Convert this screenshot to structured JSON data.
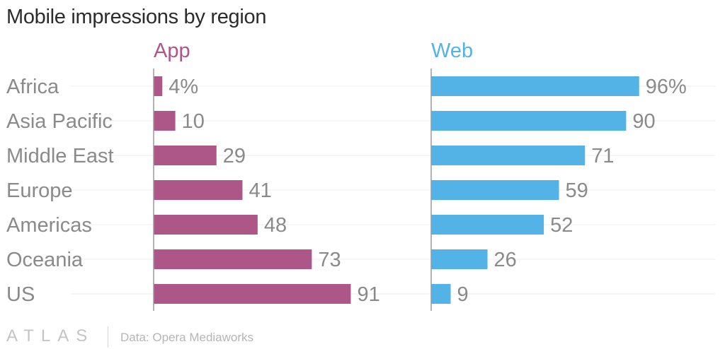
{
  "chart_data": {
    "type": "bar",
    "title": "Mobile impressions by region",
    "categories": [
      "Africa",
      "Asia Pacific",
      "Middle East",
      "Europe",
      "Americas",
      "Oceania",
      "US"
    ],
    "series": [
      {
        "name": "App",
        "color": "#ad5788",
        "values": [
          4,
          10,
          29,
          41,
          48,
          73,
          91
        ],
        "labels": [
          "4%",
          "10",
          "29",
          "41",
          "48",
          "73",
          "91"
        ]
      },
      {
        "name": "Web",
        "color": "#54b3e6",
        "values": [
          96,
          90,
          71,
          59,
          52,
          26,
          9
        ],
        "labels": [
          "96%",
          "90",
          "71",
          "59",
          "52",
          "26",
          "9"
        ]
      }
    ],
    "unit": "%",
    "xlim": [
      0,
      100
    ],
    "orientation": "horizontal",
    "grid": true
  },
  "footer": {
    "logo": "ATLAS",
    "source": "Data: Opera Mediaworks"
  }
}
